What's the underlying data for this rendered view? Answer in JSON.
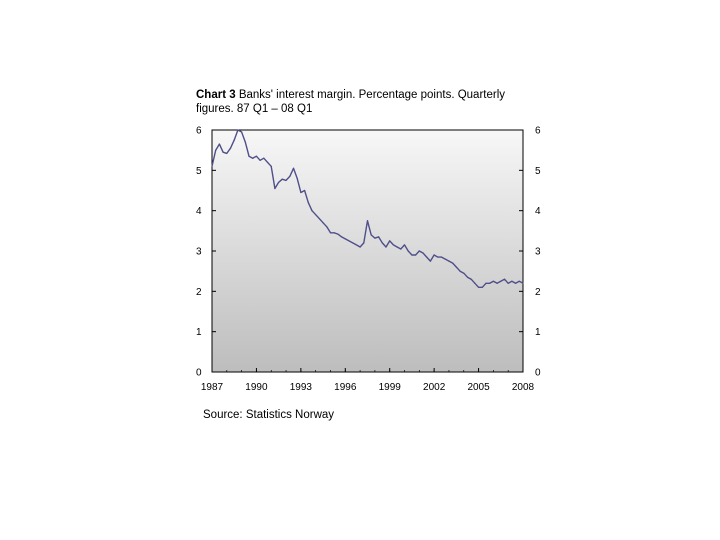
{
  "title": {
    "number": "Chart 3",
    "text": "Banks' interest margin. Percentage points. Quarterly figures. 87 Q1 – 08 Q1"
  },
  "source": "Source: Statistics Norway",
  "chart_data": {
    "type": "area",
    "title": "Chart 3 Banks' interest margin. Percentage points. Quarterly figures. 87 Q1 – 08 Q1",
    "xlabel": "",
    "ylabel": "",
    "xlim": [
      1987,
      2008
    ],
    "ylim": [
      0,
      6
    ],
    "x_ticks": [
      "1987",
      "1990",
      "1993",
      "1996",
      "1999",
      "2002",
      "2005",
      "2008"
    ],
    "y_ticks_left": [
      "0",
      "1",
      "2",
      "3",
      "4",
      "5",
      "6"
    ],
    "y_ticks_right": [
      "0",
      "1",
      "2",
      "3",
      "4",
      "5",
      "6"
    ],
    "grid": false,
    "line_color": "#4f4f8a",
    "fill_gradient": [
      "#f7f7f7",
      "#bdbdbd"
    ],
    "series": [
      {
        "x": [
          1987.0,
          1987.25,
          1987.5,
          1987.75,
          1988.0,
          1988.25,
          1988.5,
          1988.75,
          1989.0,
          1989.25,
          1989.5,
          1989.75,
          1990.0,
          1990.25,
          1990.5,
          1990.75,
          1991.0,
          1991.25,
          1991.5,
          1991.75,
          1992.0,
          1992.25,
          1992.5,
          1992.75,
          1993.0,
          1993.25,
          1993.5,
          1993.75,
          1994.0,
          1994.25,
          1994.5,
          1994.75,
          1995.0,
          1995.25,
          1995.5,
          1995.75,
          1996.0,
          1996.25,
          1996.5,
          1996.75,
          1997.0,
          1997.25,
          1997.5,
          1997.75,
          1998.0,
          1998.25,
          1998.5,
          1998.75,
          1999.0,
          1999.25,
          1999.5,
          1999.75,
          2000.0,
          2000.25,
          2000.5,
          2000.75,
          2001.0,
          2001.25,
          2001.5,
          2001.75,
          2002.0,
          2002.25,
          2002.5,
          2002.75,
          2003.0,
          2003.25,
          2003.5,
          2003.75,
          2004.0,
          2004.25,
          2004.5,
          2004.75,
          2005.0,
          2005.25,
          2005.5,
          2005.75,
          2006.0,
          2006.25,
          2006.5,
          2006.75,
          2007.0,
          2007.25,
          2007.5,
          2007.75,
          2008.0
        ],
        "values": [
          5.1,
          5.5,
          5.65,
          5.45,
          5.42,
          5.55,
          5.75,
          6.0,
          5.95,
          5.7,
          5.35,
          5.3,
          5.35,
          5.25,
          5.3,
          5.2,
          5.1,
          4.55,
          4.7,
          4.78,
          4.75,
          4.85,
          5.05,
          4.8,
          4.45,
          4.5,
          4.2,
          4.0,
          3.9,
          3.8,
          3.7,
          3.6,
          3.45,
          3.45,
          3.42,
          3.35,
          3.3,
          3.25,
          3.2,
          3.15,
          3.1,
          3.2,
          3.75,
          3.4,
          3.32,
          3.35,
          3.2,
          3.1,
          3.25,
          3.15,
          3.1,
          3.05,
          3.15,
          3.0,
          2.9,
          2.9,
          3.0,
          2.95,
          2.85,
          2.75,
          2.9,
          2.85,
          2.85,
          2.8,
          2.75,
          2.7,
          2.6,
          2.5,
          2.45,
          2.35,
          2.3,
          2.2,
          2.1,
          2.1,
          2.2,
          2.2,
          2.25,
          2.2,
          2.25,
          2.3,
          2.2,
          2.25,
          2.2,
          2.25,
          2.2
        ]
      }
    ]
  }
}
